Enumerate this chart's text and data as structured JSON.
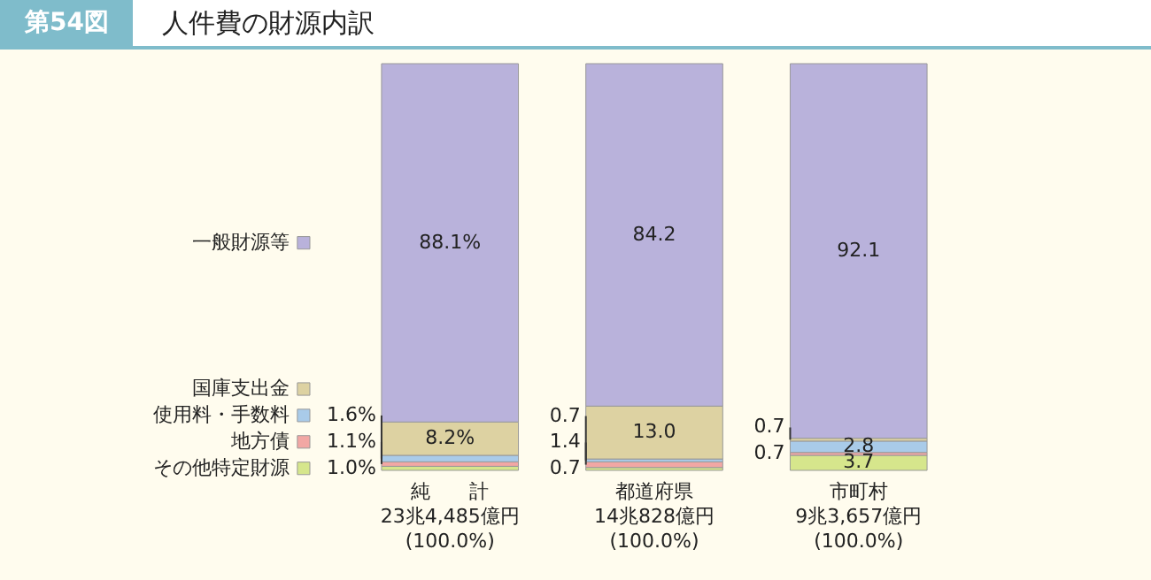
{
  "chart_data": {
    "type": "bar",
    "title": "人件費の財源内訳",
    "annotations": [
      "第54図"
    ],
    "categories": [
      "純　　計\n23兆4,485億円\n(100.0%)",
      "都道府県\n14兆828億円\n(100.0%)",
      "市町村\n9兆3,657億円\n(100.0%)"
    ],
    "stacked": true,
    "tick_labels": "x",
    "legend": "left",
    "series": [
      {
        "name": "その他特定財源",
        "color": "#d6e68c",
        "values": [
          1.0,
          0.7,
          3.7
        ],
        "value_labels": [
          "1.0%",
          "0.7",
          "3.7"
        ]
      },
      {
        "name": "地方債",
        "color": "#f2a7a4",
        "values": [
          1.1,
          1.4,
          0.7
        ],
        "value_labels": [
          "1.1%",
          "1.4",
          "0.7"
        ]
      },
      {
        "name": "使用料・手数料",
        "color": "#a9cbe9",
        "values": [
          1.6,
          0.7,
          2.8
        ],
        "value_labels": [
          "1.6%",
          "0.7",
          "2.8"
        ]
      },
      {
        "name": "国庫支出金",
        "color": "#ddd2a2",
        "values": [
          8.2,
          13.0,
          0.7
        ],
        "value_labels": [
          "8.2%",
          "13.0",
          "0.7"
        ]
      },
      {
        "name": "一般財源等",
        "color": "#b9b2db",
        "values": [
          88.1,
          84.2,
          92.1
        ],
        "value_labels": [
          "88.1%",
          "84.2",
          "92.1"
        ]
      }
    ]
  }
}
